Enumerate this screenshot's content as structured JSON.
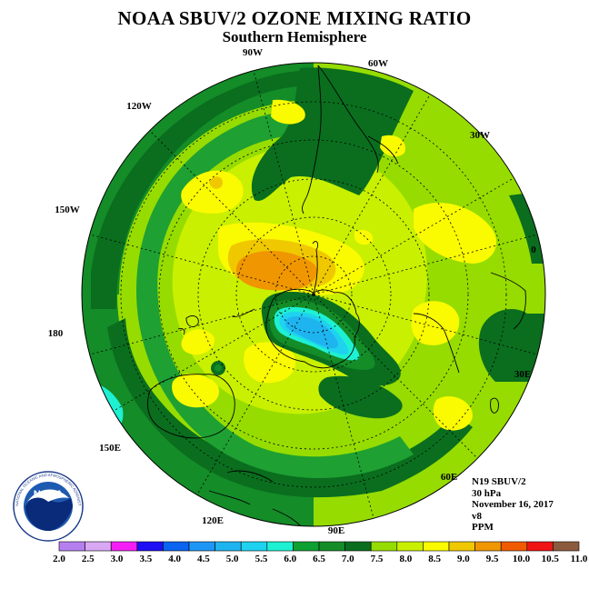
{
  "title": "NOAA SBUV/2 OZONE MIXING RATIO",
  "subtitle": "Southern Hemisphere",
  "meridian_labels": {
    "lon_90w": "90W",
    "lon_60w": "60W",
    "lon_120w": "120W",
    "lon_30w": "30W",
    "lon_150w": "150W",
    "lon_0": "0",
    "lon_180": "180",
    "lon_30e": "30E",
    "lon_150e": "150E",
    "lon_60e": "60E",
    "lon_120e": "120E",
    "lon_90e": "90E"
  },
  "info": {
    "satellite": "N19 SBUV/2",
    "level": "30 hPa",
    "date": "November 16, 2017",
    "version": "v8",
    "units": "PPM"
  },
  "logo": {
    "text": "NOAA",
    "ring_text": "NATIONAL OCEANIC AND ATMOSPHERIC ADMINISTRATION · U.S. DEPARTMENT OF COMMERCE"
  },
  "colorbar": {
    "ticks": [
      "2.0",
      "2.5",
      "3.0",
      "3.5",
      "4.0",
      "4.5",
      "5.0",
      "5.5",
      "6.0",
      "6.5",
      "7.0",
      "7.5",
      "8.0",
      "8.5",
      "9.0",
      "9.5",
      "10.0",
      "10.5",
      "11.0"
    ],
    "colors": [
      "#b57ff0",
      "#d9a8f5",
      "#f51ff5",
      "#1e0ff5",
      "#0a64f0",
      "#1e96f5",
      "#1eb4f0",
      "#1ed2f0",
      "#1ef0d2",
      "#0fa032",
      "#148c28",
      "#0a6e1e",
      "#96dc00",
      "#c8f000",
      "#fafa00",
      "#f0c800",
      "#f09600",
      "#f05a00",
      "#f01414",
      "#8c5a3c"
    ]
  },
  "palette": {
    "dark_green": "#0a6e1e",
    "mid_green": "#148c28",
    "green": "#1ea032",
    "lime": "#96dc00",
    "yellow_green": "#c8f000",
    "yellow": "#fafa00",
    "gold": "#f0c800",
    "orange": "#f09600",
    "cyan": "#1ef0d2",
    "light_blue": "#1eb4f0",
    "blue": "#1e96f5"
  }
}
